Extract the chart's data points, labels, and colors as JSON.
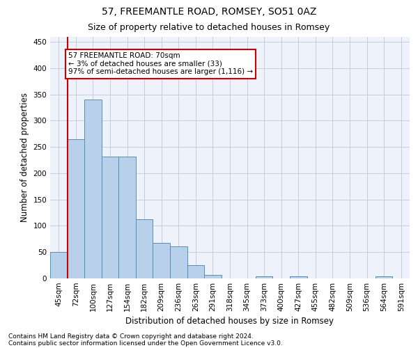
{
  "title": "57, FREEMANTLE ROAD, ROMSEY, SO51 0AZ",
  "subtitle": "Size of property relative to detached houses in Romsey",
  "xlabel": "Distribution of detached houses by size in Romsey",
  "ylabel": "Number of detached properties",
  "categories": [
    "45sqm",
    "72sqm",
    "100sqm",
    "127sqm",
    "154sqm",
    "182sqm",
    "209sqm",
    "236sqm",
    "263sqm",
    "291sqm",
    "318sqm",
    "345sqm",
    "373sqm",
    "400sqm",
    "427sqm",
    "455sqm",
    "482sqm",
    "509sqm",
    "536sqm",
    "564sqm",
    "591sqm"
  ],
  "values": [
    50,
    265,
    340,
    232,
    232,
    113,
    67,
    61,
    25,
    6,
    0,
    0,
    4,
    0,
    4,
    0,
    0,
    0,
    0,
    4,
    0
  ],
  "bar_color": "#b8d0ea",
  "bar_edge_color": "#4f8fbf",
  "annotation_text_line1": "57 FREEMANTLE ROAD: 70sqm",
  "annotation_text_line2": "← 3% of detached houses are smaller (33)",
  "annotation_text_line3": "97% of semi-detached houses are larger (1,116) →",
  "annotation_box_facecolor": "#ffffff",
  "annotation_box_edgecolor": "#cc0000",
  "vline_color": "#cc0000",
  "vline_x_index": 0.5,
  "ylim": [
    0,
    460
  ],
  "yticks": [
    0,
    50,
    100,
    150,
    200,
    250,
    300,
    350,
    400,
    450
  ],
  "footnote1": "Contains HM Land Registry data © Crown copyright and database right 2024.",
  "footnote2": "Contains public sector information licensed under the Open Government Licence v3.0.",
  "plot_bg_color": "#eef2fb",
  "grid_color": "#c5cce0",
  "title_fontsize": 10,
  "subtitle_fontsize": 9,
  "axis_label_fontsize": 8.5,
  "tick_fontsize": 7.5,
  "annotation_fontsize": 7.5,
  "footnote_fontsize": 6.5
}
